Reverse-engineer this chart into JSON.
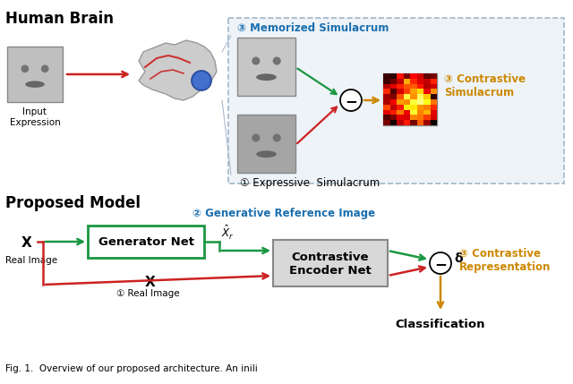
{
  "bg_color": "#ffffff",
  "dark_green": "#1a9641",
  "dark_red": "#cc2222",
  "blue_text": "#1a6faf",
  "orange_text": "#cc8800",
  "black": "#000000",
  "gray_face": "#b8b8b8",
  "gray_box": "#d0d0d0",
  "section1_title": "Human Brain",
  "section2_title": "Proposed Model",
  "memorized_label": "③ Memorized Simulacrum",
  "expressive_label": "① Expressive  Simulacrum",
  "contrastive_sim_label": "③ Contrastive\nSimulacrum",
  "gen_ref_label": "② Generative Reference Image",
  "generator_label": "Generator Net",
  "contrastive_enc_label": "Contrastive\nEncoder Net",
  "contrastive_rep_label": "③ Contrastive\nRepresentation",
  "input_expr_label": "Input\nExpression",
  "real_image_label": "Real Image",
  "real_image2_label": "① Real Image",
  "x_label": "X",
  "delta_label": "δ",
  "classification_label": "Classification",
  "fig_caption": "Fig. 1.  Overview of our proposed architecture. An inili"
}
